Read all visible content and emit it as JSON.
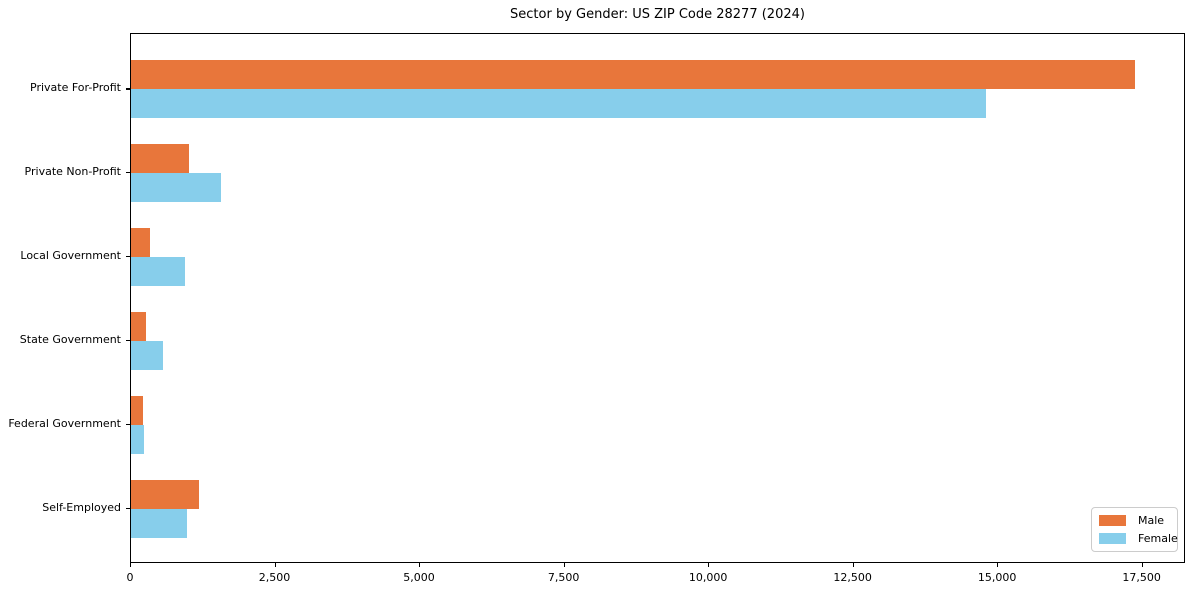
{
  "title": "Sector by Gender: US ZIP Code 28277 (2024)",
  "legend": {
    "entries": [
      {
        "label": "Male",
        "color": "#e8763b"
      },
      {
        "label": "Female",
        "color": "#87ceeb"
      }
    ],
    "position": "lower right"
  },
  "chart_data": {
    "type": "bar",
    "orientation": "horizontal",
    "title": "Sector by Gender: US ZIP Code 28277 (2024)",
    "categories": [
      "Private For-Profit",
      "Private Non-Profit",
      "Local Government",
      "State Government",
      "Federal Government",
      "Self-Employed"
    ],
    "series": [
      {
        "name": "Male",
        "color": "#e8763b",
        "values": [
          17370,
          1000,
          320,
          260,
          200,
          1180
        ]
      },
      {
        "name": "Female",
        "color": "#87ceeb",
        "values": [
          14790,
          1560,
          930,
          560,
          220,
          970
        ]
      }
    ],
    "xlabel": "",
    "ylabel": "",
    "x_tick_labels": [
      "0",
      "2,500",
      "5,000",
      "7,500",
      "10,000",
      "12,500",
      "15,000",
      "17,500"
    ],
    "x_tick_values": [
      0,
      2500,
      5000,
      7500,
      10000,
      12500,
      15000,
      17500
    ],
    "xlim": [
      0,
      18250
    ],
    "grid": false,
    "legend_position": "lower right"
  },
  "colors": {
    "male": "#e8763b",
    "female": "#87ceeb",
    "axis": "#000000",
    "background": "#ffffff",
    "legend_border": "#cccccc"
  }
}
